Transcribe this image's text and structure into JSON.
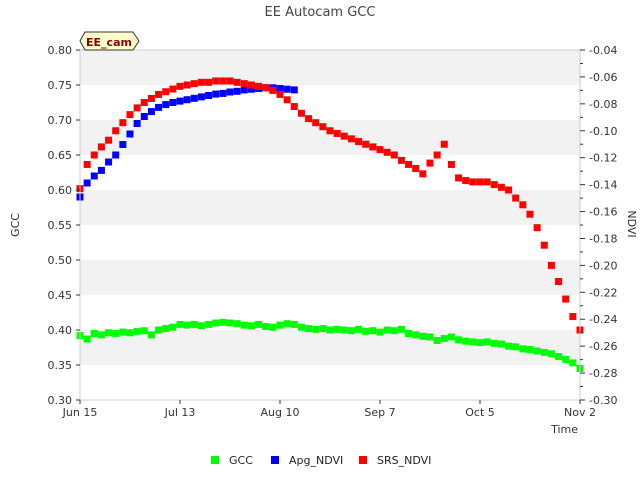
{
  "chart_data": {
    "type": "scatter",
    "title": "EE Autocam GCC",
    "site_tag": "EE_cam",
    "xlabel": "Time",
    "ylabel_left": "GCC",
    "ylabel_right": "NDVI",
    "x_unit": "day-of-year",
    "xlim": [
      166,
      306
    ],
    "x_ticks": [
      {
        "value": 166,
        "label": "Jun 15"
      },
      {
        "value": 194,
        "label": "Jul 13"
      },
      {
        "value": 222,
        "label": "Aug 10"
      },
      {
        "value": 250,
        "label": "Sep 7"
      },
      {
        "value": 278,
        "label": "Oct 5"
      },
      {
        "value": 306,
        "label": "Nov 2"
      }
    ],
    "ylim_left": [
      0.3,
      0.8
    ],
    "y_ticks_left": [
      "0.30",
      "0.35",
      "0.40",
      "0.45",
      "0.50",
      "0.55",
      "0.60",
      "0.65",
      "0.70",
      "0.75",
      "0.80"
    ],
    "ylim_right": [
      -0.3,
      -0.04
    ],
    "y_ticks_right": [
      "-0.30",
      "-0.28",
      "-0.26",
      "-0.24",
      "-0.22",
      "-0.20",
      "-0.18",
      "-0.16",
      "-0.14",
      "-0.12",
      "-0.10",
      "-0.08",
      "-0.06",
      "-0.04"
    ],
    "grid": "horizontal bands",
    "legend_position": "bottom-center",
    "series": [
      {
        "name": "GCC",
        "color": "#00ff00",
        "axis": "left",
        "x": [
          166,
          168,
          170,
          172,
          174,
          176,
          178,
          180,
          182,
          184,
          186,
          188,
          190,
          192,
          194,
          196,
          198,
          200,
          202,
          204,
          206,
          208,
          210,
          212,
          214,
          216,
          218,
          220,
          222,
          224,
          226,
          228,
          230,
          232,
          234,
          236,
          238,
          240,
          242,
          244,
          246,
          248,
          250,
          252,
          254,
          256,
          258,
          260,
          262,
          264,
          266,
          268,
          270,
          272,
          274,
          276,
          278,
          280,
          282,
          284,
          286,
          288,
          290,
          292,
          294,
          296,
          298,
          300,
          302,
          304,
          306
        ],
        "y": [
          0.392,
          0.387,
          0.395,
          0.393,
          0.396,
          0.395,
          0.397,
          0.396,
          0.398,
          0.399,
          0.393,
          0.4,
          0.402,
          0.404,
          0.408,
          0.407,
          0.408,
          0.406,
          0.408,
          0.41,
          0.411,
          0.41,
          0.409,
          0.407,
          0.406,
          0.408,
          0.405,
          0.404,
          0.407,
          0.409,
          0.408,
          0.404,
          0.402,
          0.401,
          0.402,
          0.4,
          0.401,
          0.4,
          0.399,
          0.401,
          0.398,
          0.399,
          0.397,
          0.4,
          0.399,
          0.401,
          0.395,
          0.393,
          0.391,
          0.39,
          0.385,
          0.388,
          0.39,
          0.386,
          0.384,
          0.383,
          0.382,
          0.383,
          0.381,
          0.38,
          0.377,
          0.376,
          0.373,
          0.372,
          0.37,
          0.368,
          0.366,
          0.362,
          0.358,
          0.353,
          0.345
        ]
      },
      {
        "name": "Apg_NDVI",
        "color": "#0000ff",
        "axis": "left",
        "x": [
          166,
          168,
          170,
          172,
          174,
          176,
          178,
          180,
          182,
          184,
          186,
          188,
          190,
          192,
          194,
          196,
          198,
          200,
          202,
          204,
          206,
          208,
          210,
          212,
          214,
          216,
          218,
          220,
          222,
          224,
          226
        ],
        "y": [
          0.59,
          0.61,
          0.62,
          0.628,
          0.64,
          0.65,
          0.665,
          0.68,
          0.695,
          0.705,
          0.712,
          0.718,
          0.722,
          0.725,
          0.727,
          0.729,
          0.731,
          0.733,
          0.735,
          0.737,
          0.738,
          0.74,
          0.741,
          0.743,
          0.744,
          0.745,
          0.746,
          0.746,
          0.745,
          0.744,
          0.743
        ]
      },
      {
        "name": "SRS_NDVI",
        "color": "#ff0000",
        "axis": "right",
        "x": [
          166,
          168,
          170,
          172,
          174,
          176,
          178,
          180,
          182,
          184,
          186,
          188,
          190,
          192,
          194,
          196,
          198,
          200,
          202,
          204,
          206,
          208,
          210,
          212,
          214,
          216,
          218,
          220,
          222,
          224,
          226,
          228,
          230,
          232,
          234,
          236,
          238,
          240,
          242,
          244,
          246,
          248,
          250,
          252,
          254,
          256,
          258,
          260,
          262,
          264,
          266,
          268,
          270,
          272,
          274,
          276,
          278,
          280,
          282,
          284,
          286,
          288,
          290,
          292,
          294,
          296,
          298,
          300,
          302,
          304,
          306
        ],
        "y": [
          -0.143,
          -0.125,
          -0.118,
          -0.112,
          -0.107,
          -0.1,
          -0.094,
          -0.088,
          -0.083,
          -0.079,
          -0.076,
          -0.073,
          -0.071,
          -0.069,
          -0.067,
          -0.066,
          -0.065,
          -0.064,
          -0.064,
          -0.063,
          -0.063,
          -0.063,
          -0.064,
          -0.065,
          -0.066,
          -0.067,
          -0.068,
          -0.07,
          -0.073,
          -0.077,
          -0.082,
          -0.087,
          -0.091,
          -0.094,
          -0.097,
          -0.1,
          -0.102,
          -0.104,
          -0.106,
          -0.108,
          -0.11,
          -0.112,
          -0.114,
          -0.116,
          -0.118,
          -0.122,
          -0.125,
          -0.128,
          -0.132,
          -0.124,
          -0.118,
          -0.11,
          -0.125,
          -0.135,
          -0.137,
          -0.138,
          -0.138,
          -0.138,
          -0.14,
          -0.142,
          -0.144,
          -0.15,
          -0.155,
          -0.162,
          -0.172,
          -0.185,
          -0.2,
          -0.212,
          -0.225,
          -0.238,
          -0.248
        ]
      }
    ]
  }
}
